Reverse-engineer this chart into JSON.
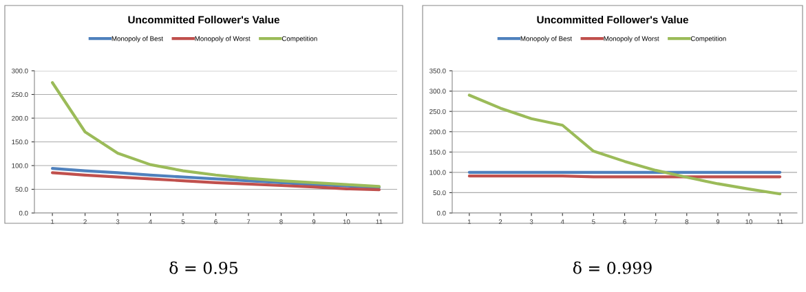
{
  "chart_data": [
    {
      "type": "line",
      "title": "Uncommitted Follower's Value",
      "categories": [
        "1",
        "2",
        "3",
        "4",
        "5",
        "6",
        "7",
        "8",
        "9",
        "10",
        "11"
      ],
      "series": [
        {
          "name": "Monopoly of Best",
          "color": "#4f81bd",
          "values": [
            94,
            89,
            85,
            80,
            76,
            72,
            68,
            64,
            60,
            57,
            54
          ]
        },
        {
          "name": "Monopoly of Worst",
          "color": "#c0504d",
          "values": [
            85,
            80,
            76,
            72,
            68,
            64,
            61,
            58,
            55,
            51,
            49
          ]
        },
        {
          "name": "Competition",
          "color": "#9bbb59",
          "values": [
            275,
            171,
            126,
            102,
            89,
            80,
            73,
            68,
            64,
            60,
            56
          ]
        }
      ],
      "ylim": [
        0,
        300
      ],
      "yticks": [
        {
          "value": 0,
          "label": "0.0"
        },
        {
          "value": 50,
          "label": "50.0"
        },
        {
          "value": 100,
          "label": "100.0"
        },
        {
          "value": 150,
          "label": "150.0"
        },
        {
          "value": 200,
          "label": "200.0"
        },
        {
          "value": 250,
          "label": "250.0"
        },
        {
          "value": 300,
          "label": "300.0"
        }
      ],
      "grid": "y",
      "legend": "top",
      "marker": "none",
      "line_style": "solid",
      "annotations": [
        "δ = 0.95"
      ]
    },
    {
      "type": "line",
      "title": "Uncommitted Follower's Value",
      "categories": [
        "1",
        "2",
        "3",
        "4",
        "5",
        "6",
        "7",
        "8",
        "9",
        "10",
        "11"
      ],
      "series": [
        {
          "name": "Monopoly of Best",
          "color": "#4f81bd",
          "values": [
            100,
            100,
            100,
            100,
            100,
            100,
            100,
            100,
            100,
            100,
            100
          ]
        },
        {
          "name": "Monopoly of Worst",
          "color": "#c0504d",
          "values": [
            91,
            91,
            91,
            91,
            89,
            89,
            89,
            89,
            89,
            89,
            89
          ]
        },
        {
          "name": "Competition",
          "color": "#9bbb59",
          "values": [
            290,
            258,
            232,
            216,
            152,
            127,
            105,
            88,
            72,
            59,
            47
          ]
        }
      ],
      "ylim": [
        0,
        350
      ],
      "yticks": [
        {
          "value": 0,
          "label": "0.0"
        },
        {
          "value": 50,
          "label": "50.0"
        },
        {
          "value": 100,
          "label": "100.0"
        },
        {
          "value": 150,
          "label": "150.0"
        },
        {
          "value": 200,
          "label": "200.0"
        },
        {
          "value": 250,
          "label": "250.0"
        },
        {
          "value": 300,
          "label": "300.0"
        },
        {
          "value": 350,
          "label": "350.0"
        }
      ],
      "grid": "y",
      "legend": "top",
      "marker": "none",
      "line_style": "solid",
      "annotations": [
        "δ = 0.999"
      ]
    }
  ]
}
